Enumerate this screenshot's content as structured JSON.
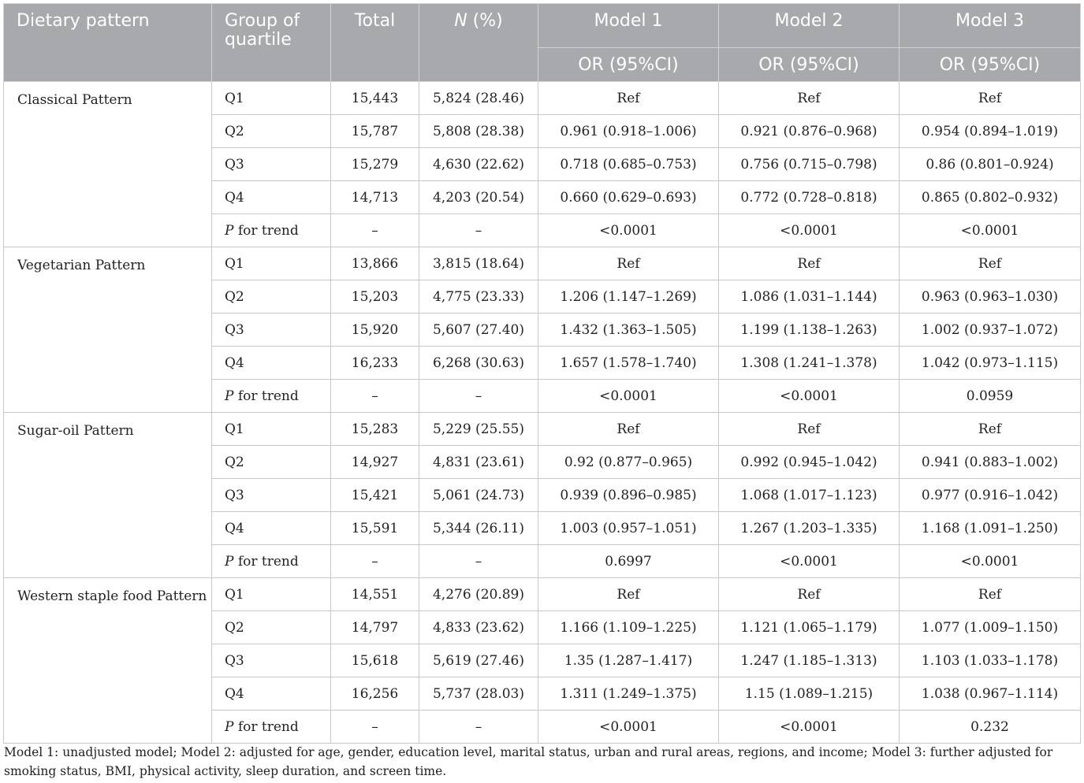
{
  "header": {
    "dietary_pattern": "Dietary pattern",
    "group_of_quartile": "Group of quartile",
    "total": "Total",
    "n_label": "N",
    "n_suffix": " (%)",
    "model1": "Model 1",
    "model2": "Model 2",
    "model3": "Model 3",
    "or_label": "OR (95%CI)"
  },
  "p_for_trend": {
    "p": "P",
    "suffix": " for trend"
  },
  "patterns": [
    {
      "name": "Classical Pattern",
      "rows": [
        {
          "q": "Q1",
          "total": "15,443",
          "n": "5,824 (28.46)",
          "m1": "Ref",
          "m2": "Ref",
          "m3": "Ref"
        },
        {
          "q": "Q2",
          "total": "15,787",
          "n": "5,808 (28.38)",
          "m1": "0.961 (0.918–1.006)",
          "m2": "0.921 (0.876–0.968)",
          "m3": "0.954 (0.894–1.019)"
        },
        {
          "q": "Q3",
          "total": "15,279",
          "n": "4,630 (22.62)",
          "m1": "0.718 (0.685–0.753)",
          "m2": "0.756 (0.715–0.798)",
          "m3": "0.86 (0.801–0.924)"
        },
        {
          "q": "Q4",
          "total": "14,713",
          "n": "4,203 (20.54)",
          "m1": "0.660 (0.629–0.693)",
          "m2": "0.772 (0.728–0.818)",
          "m3": "0.865 (0.802–0.932)"
        }
      ],
      "trend": {
        "total": "–",
        "n": "–",
        "m1": "<0.0001",
        "m2": "<0.0001",
        "m3": "<0.0001"
      }
    },
    {
      "name": "Vegetarian Pattern",
      "rows": [
        {
          "q": "Q1",
          "total": "13,866",
          "n": "3,815 (18.64)",
          "m1": "Ref",
          "m2": "Ref",
          "m3": "Ref"
        },
        {
          "q": "Q2",
          "total": "15,203",
          "n": "4,775 (23.33)",
          "m1": "1.206 (1.147–1.269)",
          "m2": "1.086 (1.031–1.144)",
          "m3": "0.963 (0.963–1.030)"
        },
        {
          "q": "Q3",
          "total": "15,920",
          "n": "5,607 (27.40)",
          "m1": "1.432 (1.363–1.505)",
          "m2": "1.199 (1.138–1.263)",
          "m3": "1.002 (0.937–1.072)"
        },
        {
          "q": "Q4",
          "total": "16,233",
          "n": "6,268 (30.63)",
          "m1": "1.657 (1.578–1.740)",
          "m2": "1.308 (1.241–1.378)",
          "m3": "1.042 (0.973–1.115)"
        }
      ],
      "trend": {
        "total": "–",
        "n": "–",
        "m1": "<0.0001",
        "m2": "<0.0001",
        "m3": "0.0959"
      }
    },
    {
      "name": "Sugar-oil Pattern",
      "rows": [
        {
          "q": "Q1",
          "total": "15,283",
          "n": "5,229 (25.55)",
          "m1": "Ref",
          "m2": "Ref",
          "m3": "Ref"
        },
        {
          "q": "Q2",
          "total": "14,927",
          "n": "4,831 (23.61)",
          "m1": "0.92 (0.877–0.965)",
          "m2": "0.992 (0.945–1.042)",
          "m3": "0.941 (0.883–1.002)"
        },
        {
          "q": "Q3",
          "total": "15,421",
          "n": "5,061 (24.73)",
          "m1": "0.939 (0.896–0.985)",
          "m2": "1.068 (1.017–1.123)",
          "m3": "0.977 (0.916–1.042)"
        },
        {
          "q": "Q4",
          "total": "15,591",
          "n": "5,344 (26.11)",
          "m1": "1.003 (0.957–1.051)",
          "m2": "1.267 (1.203–1.335)",
          "m3": "1.168 (1.091–1.250)"
        }
      ],
      "trend": {
        "total": "–",
        "n": "–",
        "m1": "0.6997",
        "m2": "<0.0001",
        "m3": "<0.0001"
      }
    },
    {
      "name": "Western staple food Pattern",
      "rows": [
        {
          "q": "Q1",
          "total": "14,551",
          "n": "4,276 (20.89)",
          "m1": "Ref",
          "m2": "Ref",
          "m3": "Ref"
        },
        {
          "q": "Q2",
          "total": "14,797",
          "n": "4,833 (23.62)",
          "m1": "1.166 (1.109–1.225)",
          "m2": "1.121 (1.065–1.179)",
          "m3": "1.077 (1.009–1.150)"
        },
        {
          "q": "Q3",
          "total": "15,618",
          "n": "5,619 (27.46)",
          "m1": "1.35 (1.287–1.417)",
          "m2": "1.247 (1.185–1.313)",
          "m3": "1.103 (1.033–1.178)"
        },
        {
          "q": "Q4",
          "total": "16,256",
          "n": "5,737 (28.03)",
          "m1": "1.311 (1.249–1.375)",
          "m2": "1.15 (1.089–1.215)",
          "m3": "1.038 (0.967–1.114)"
        }
      ],
      "trend": {
        "total": "–",
        "n": "–",
        "m1": "<0.0001",
        "m2": "<0.0001",
        "m3": "0.232"
      }
    }
  ],
  "footnote": "Model 1: unadjusted model; Model 2: adjusted for age, gender, education level, marital status, urban and rural areas, regions, and income; Model 3: further adjusted for smoking status, BMI, physical activity, sleep duration, and screen time."
}
